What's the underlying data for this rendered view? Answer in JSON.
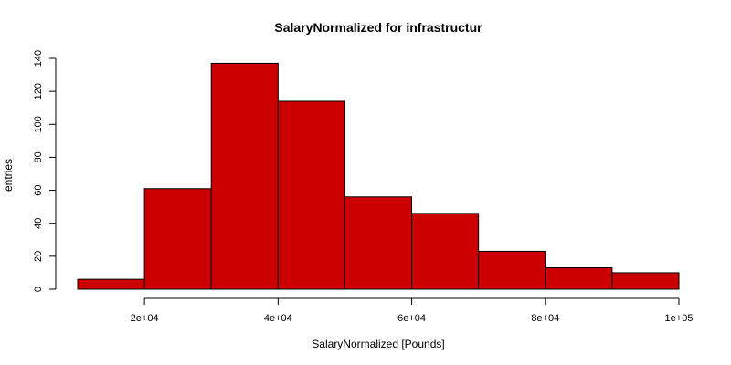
{
  "chart_data": {
    "type": "bar",
    "title": "SalaryNormalized for infrastructur",
    "xlabel": "SalaryNormalized [Pounds]",
    "ylabel": "entries",
    "bin_edges": [
      10000,
      20000,
      30000,
      40000,
      50000,
      60000,
      70000,
      80000,
      90000,
      100000
    ],
    "values": [
      6,
      61,
      137,
      114,
      56,
      46,
      23,
      13,
      10
    ],
    "xlim": [
      10000,
      100000
    ],
    "ylim": [
      0,
      140
    ],
    "x_ticks": [
      20000,
      40000,
      60000,
      80000,
      100000
    ],
    "x_tick_labels": [
      "2e+04",
      "4e+04",
      "6e+04",
      "8e+04",
      "1e+05"
    ],
    "y_ticks": [
      0,
      20,
      40,
      60,
      80,
      100,
      120,
      140
    ],
    "y_tick_labels": [
      "0",
      "20",
      "40",
      "60",
      "80",
      "100",
      "120",
      "140"
    ],
    "bar_color": "#cc0000",
    "grid": false,
    "legend": "none"
  }
}
